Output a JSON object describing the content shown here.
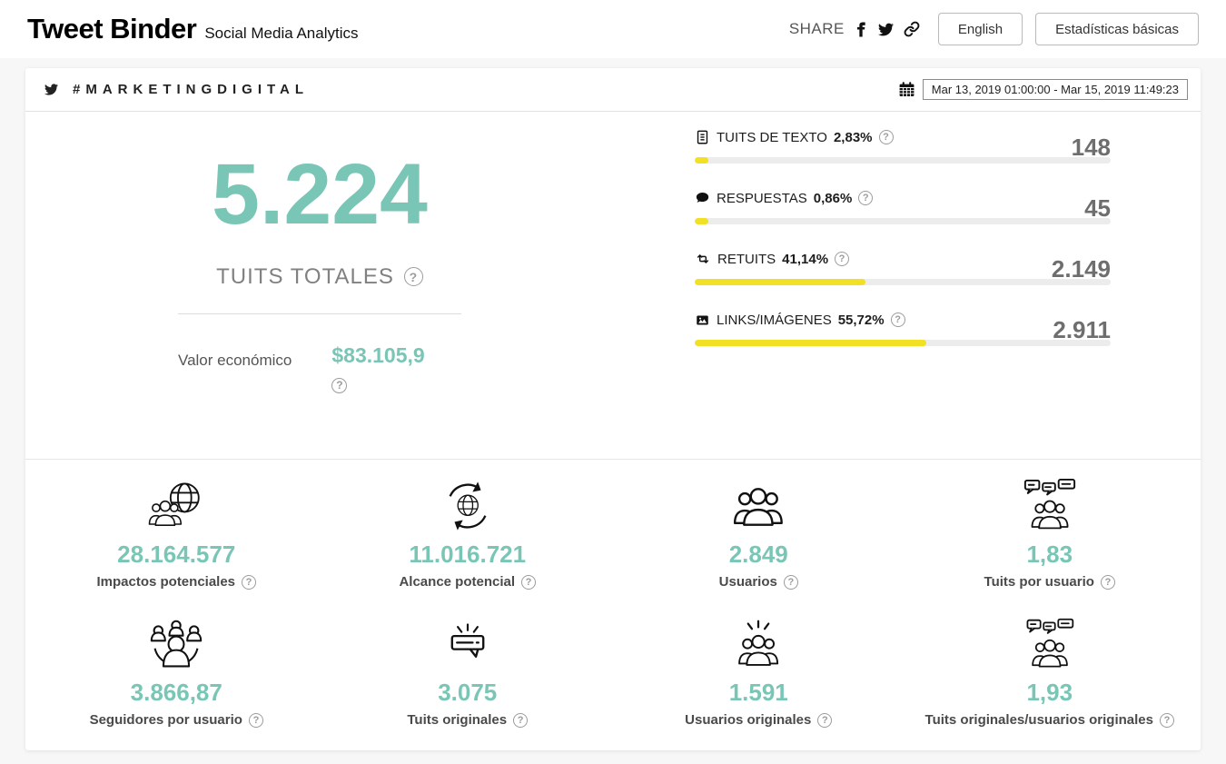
{
  "header": {
    "brand_title": "Tweet Binder",
    "brand_subtitle": "Social Media Analytics",
    "share_label": "SHARE",
    "language_button": "English",
    "stats_button": "Estadísticas básicas"
  },
  "report_bar": {
    "hashtag": "#MARKETINGDIGITAL",
    "date_range": "Mar 13, 2019 01:00:00 - Mar 15, 2019 11:49:23"
  },
  "totals": {
    "value": "5.224",
    "label": "TUITS TOTALES",
    "economic_label": "Valor económico",
    "economic_value": "$83.105,9"
  },
  "breakdown": [
    {
      "icon": "text-tweet-icon",
      "label": "TUITS DE TEXTO",
      "percent_label": "2,83%",
      "percent": 2.83,
      "value": "148"
    },
    {
      "icon": "reply-icon",
      "label": "RESPUESTAS",
      "percent_label": "0,86%",
      "percent": 0.86,
      "value": "45"
    },
    {
      "icon": "retweet-icon",
      "label": "RETUITS",
      "percent_label": "41,14%",
      "percent": 41.14,
      "value": "2.149"
    },
    {
      "icon": "links-images-icon",
      "label": "LINKS/IMÁGENES",
      "percent_label": "55,72%",
      "percent": 55.72,
      "value": "2.911"
    }
  ],
  "metrics": [
    {
      "icon": "globe-users-icon",
      "value": "28.164.577",
      "label": "Impactos potenciales"
    },
    {
      "icon": "globe-refresh-icon",
      "value": "11.016.721",
      "label": "Alcance potencial"
    },
    {
      "icon": "users-group-icon",
      "value": "2.849",
      "label": "Usuarios"
    },
    {
      "icon": "users-chat-icon",
      "value": "1,83",
      "label": "Tuits por usuario"
    },
    {
      "icon": "followers-network-icon",
      "value": "3.866,87",
      "label": "Seguidores por usuario"
    },
    {
      "icon": "original-tweet-icon",
      "value": "3.075",
      "label": "Tuits originales"
    },
    {
      "icon": "users-rays-icon",
      "value": "1.591",
      "label": "Usuarios originales"
    },
    {
      "icon": "users-chat-icon",
      "value": "1,93",
      "label": "Tuits originales/usuarios originales"
    }
  ],
  "colors": {
    "accent_teal": "#79c6b6",
    "bar_yellow": "#f2e024",
    "bar_track": "#ececec"
  }
}
